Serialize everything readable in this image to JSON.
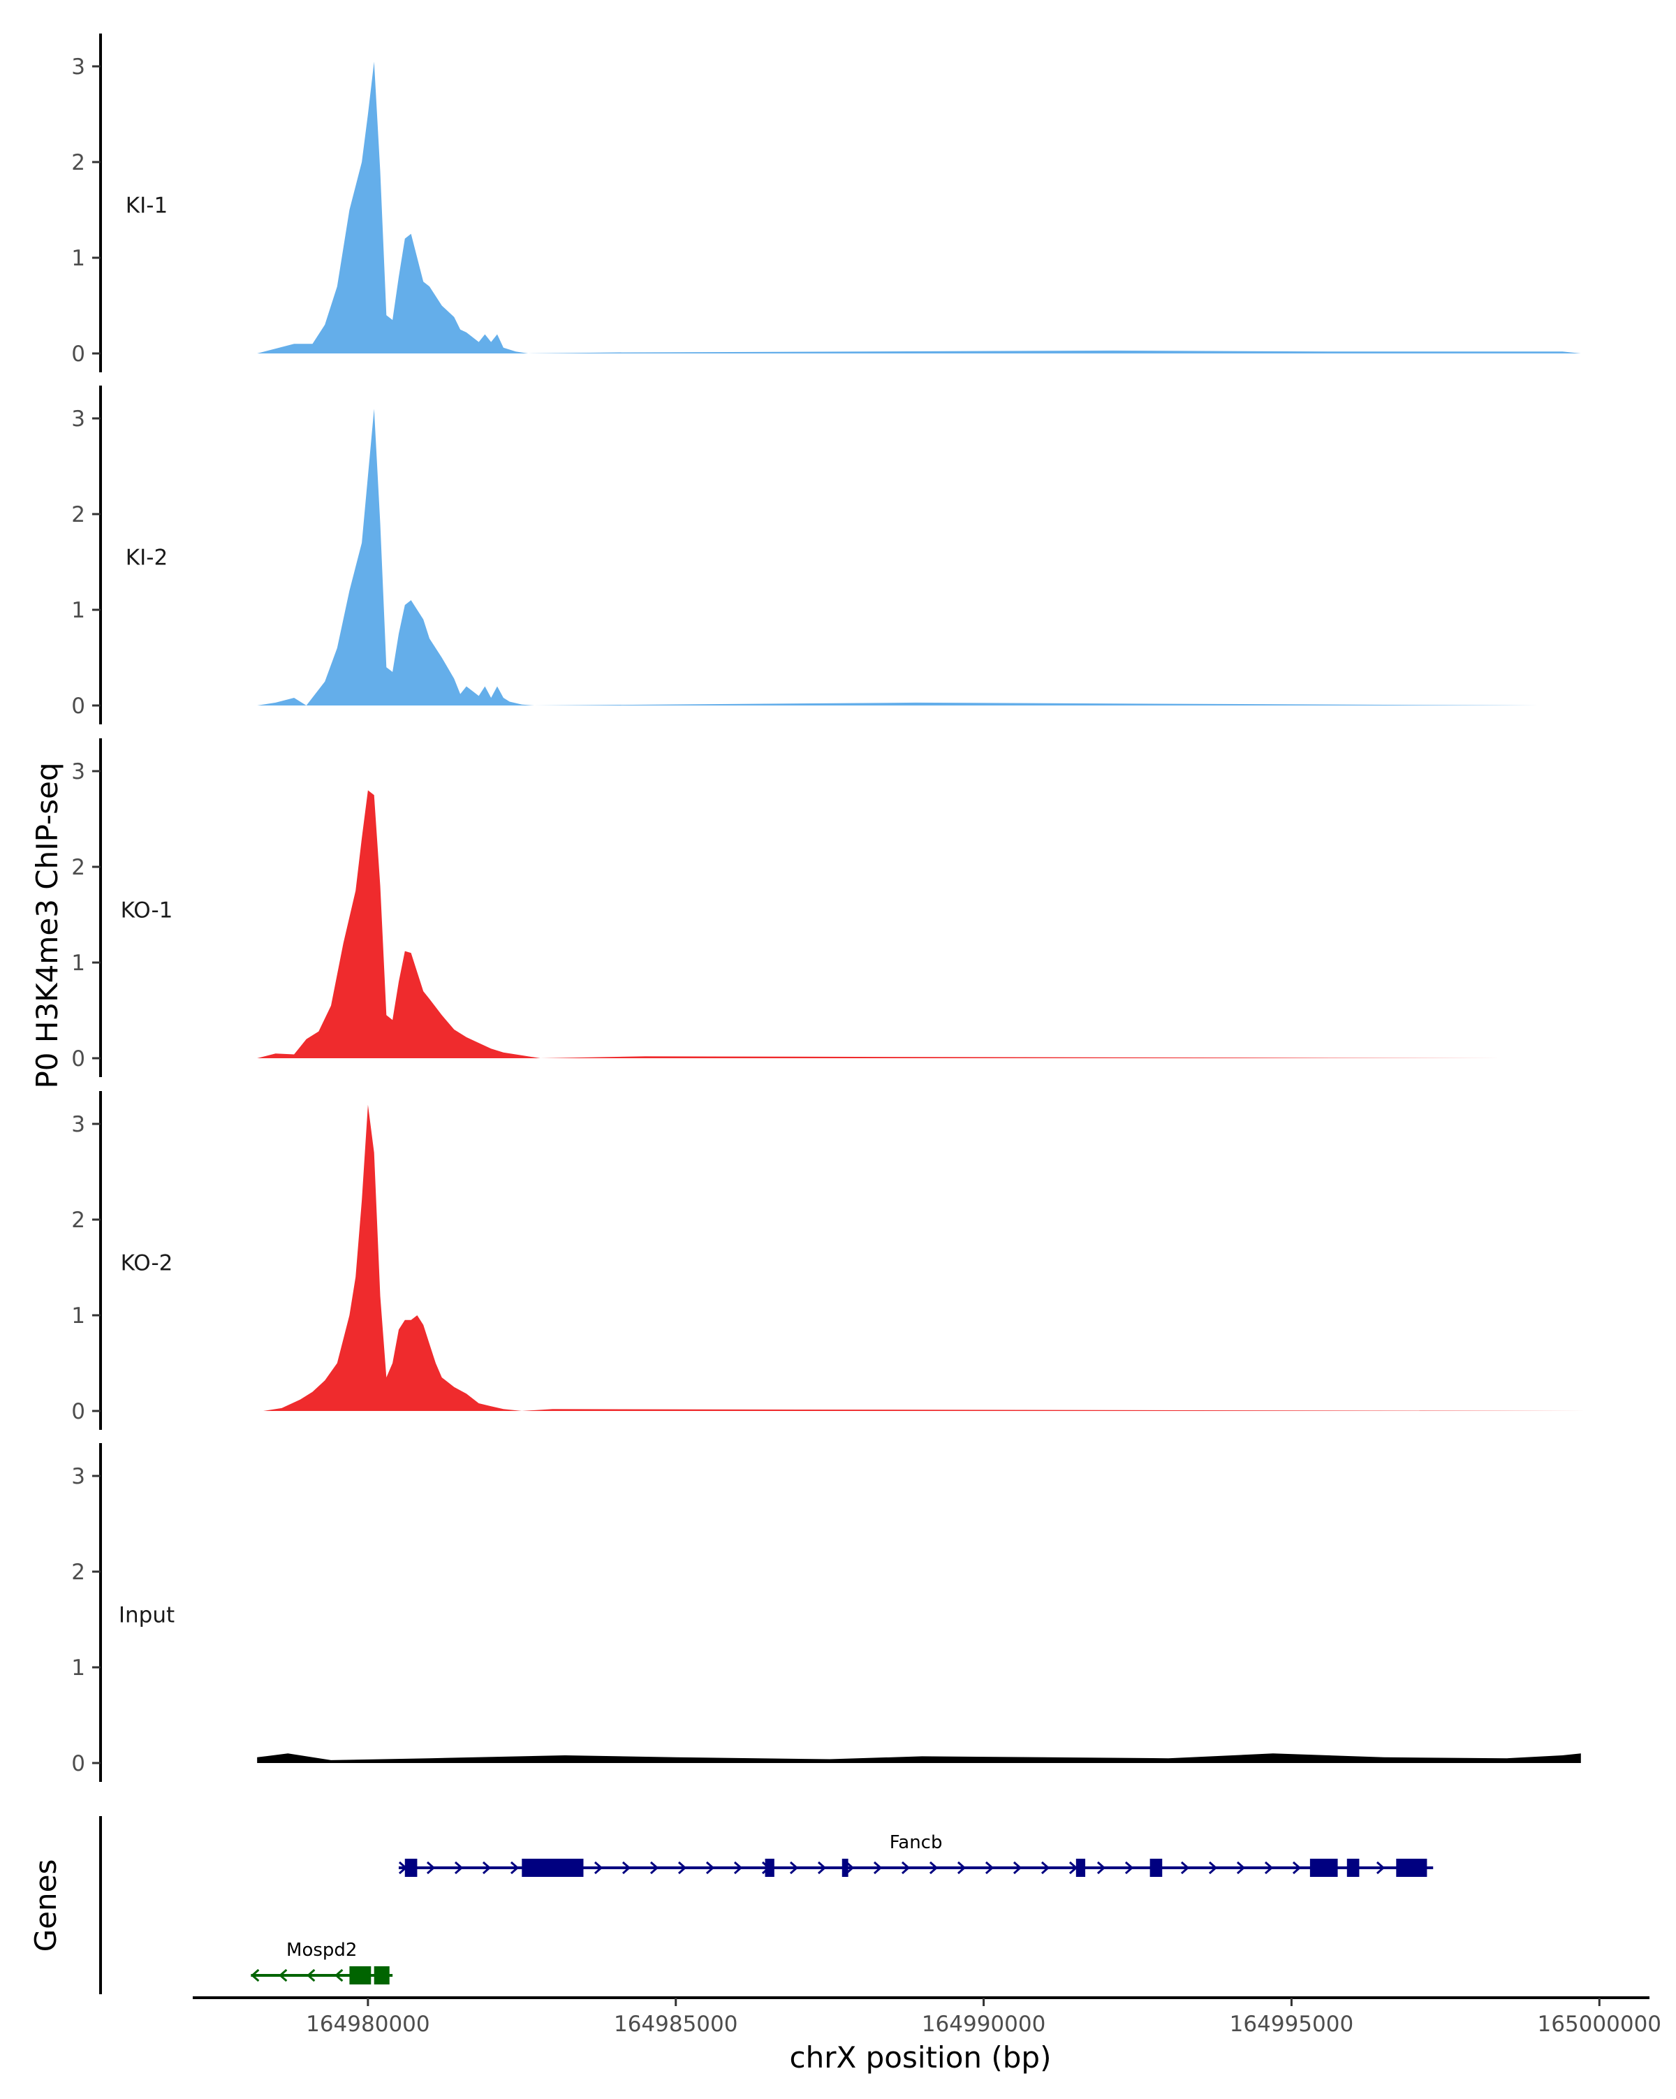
{
  "chart_data": {
    "type": "area",
    "ylabel": "P0 H3K4me3 ChIP-seq",
    "xlabel": "chrX position (bp)",
    "gene_track_label": "Genes",
    "xlim": [
      164977200,
      165000700
    ],
    "ylim": [
      0,
      3.3
    ],
    "yticks": [
      0,
      1,
      2,
      3
    ],
    "xticks": [
      164980000,
      164985000,
      164990000,
      164995000,
      165000000
    ],
    "xtick_labels": [
      "164980000",
      "164985000",
      "164990000",
      "164995000",
      "165000000"
    ],
    "tracks": [
      {
        "name": "KI-1",
        "color": "#64aeea",
        "x": [
          164978200,
          164978500,
          164978800,
          164979100,
          164979300,
          164979500,
          164979700,
          164979900,
          164980000,
          164980100,
          164980200,
          164980300,
          164980400,
          164980500,
          164980600,
          164980700,
          164980800,
          164980900,
          164981000,
          164981200,
          164981400,
          164981500,
          164981600,
          164981800,
          164981900,
          164982000,
          164982100,
          164982200,
          164982400,
          164982600,
          164984000,
          164992100,
          164995600,
          164999400,
          164999700
        ],
        "values": [
          0.0,
          0.05,
          0.1,
          0.1,
          0.3,
          0.7,
          1.5,
          2.0,
          2.5,
          3.05,
          1.9,
          0.4,
          0.35,
          0.8,
          1.2,
          1.25,
          1.0,
          0.75,
          0.7,
          0.5,
          0.38,
          0.25,
          0.22,
          0.12,
          0.2,
          0.12,
          0.2,
          0.06,
          0.02,
          0.0,
          0.01,
          0.03,
          0.02,
          0.02,
          0.0
        ]
      },
      {
        "name": "KI-2",
        "color": "#64aeea",
        "x": [
          164978200,
          164978500,
          164978800,
          164979000,
          164979300,
          164979500,
          164979700,
          164979900,
          164980000,
          164980100,
          164980200,
          164980300,
          164980400,
          164980500,
          164980600,
          164980700,
          164980800,
          164980900,
          164981000,
          164981200,
          164981400,
          164981500,
          164981600,
          164981800,
          164981900,
          164982000,
          164982100,
          164982200,
          164982300,
          164982500,
          164982700,
          164988900,
          164999000
        ],
        "values": [
          0.0,
          0.03,
          0.08,
          0.0,
          0.25,
          0.6,
          1.2,
          1.7,
          2.4,
          3.1,
          1.9,
          0.4,
          0.35,
          0.75,
          1.05,
          1.1,
          1.0,
          0.9,
          0.7,
          0.5,
          0.28,
          0.12,
          0.2,
          0.1,
          0.2,
          0.08,
          0.2,
          0.08,
          0.04,
          0.01,
          0.0,
          0.03,
          0.0
        ]
      },
      {
        "name": "KO-1",
        "color": "#ef2b2d",
        "x": [
          164978200,
          164978500,
          164978800,
          164979000,
          164979200,
          164979400,
          164979600,
          164979800,
          164979900,
          164980000,
          164980100,
          164980200,
          164980300,
          164980400,
          164980500,
          164980600,
          164980700,
          164980800,
          164980900,
          164981000,
          164981200,
          164981400,
          164981600,
          164981800,
          164982000,
          164982200,
          164982500,
          164982800,
          164984500,
          164998400
        ],
        "values": [
          0.0,
          0.05,
          0.04,
          0.2,
          0.28,
          0.55,
          1.2,
          1.75,
          2.3,
          2.8,
          2.75,
          1.8,
          0.45,
          0.4,
          0.8,
          1.12,
          1.1,
          0.9,
          0.7,
          0.62,
          0.45,
          0.3,
          0.22,
          0.16,
          0.1,
          0.06,
          0.03,
          0.0,
          0.02,
          0.0
        ]
      },
      {
        "name": "KO-2",
        "color": "#ef2b2d",
        "x": [
          164978300,
          164978600,
          164978900,
          164979100,
          164979300,
          164979500,
          164979700,
          164979800,
          164979900,
          164980000,
          164980100,
          164980200,
          164980300,
          164980400,
          164980500,
          164980600,
          164980700,
          164980800,
          164980900,
          164981000,
          164981100,
          164981200,
          164981400,
          164981600,
          164981800,
          164982000,
          164982200,
          164982500,
          164983000,
          164999800
        ],
        "values": [
          0.0,
          0.03,
          0.12,
          0.2,
          0.32,
          0.5,
          1.0,
          1.4,
          2.2,
          3.2,
          2.7,
          1.2,
          0.35,
          0.5,
          0.85,
          0.95,
          0.95,
          1.0,
          0.9,
          0.7,
          0.5,
          0.35,
          0.25,
          0.18,
          0.08,
          0.05,
          0.02,
          0.0,
          0.02,
          0.0
        ]
      },
      {
        "name": "Input",
        "color": "#000000",
        "x": [
          164978200,
          164978700,
          164979400,
          164981000,
          164983200,
          164985000,
          164987500,
          164989000,
          164991000,
          164993000,
          164994700,
          164996500,
          164998500,
          164999400,
          164999700
        ],
        "values": [
          0.06,
          0.1,
          0.03,
          0.05,
          0.08,
          0.06,
          0.04,
          0.07,
          0.06,
          0.05,
          0.1,
          0.06,
          0.05,
          0.08,
          0.1
        ]
      }
    ],
    "genes": [
      {
        "name": "Fancb",
        "strand": "+",
        "color": "#000080",
        "start": 164980500,
        "end": 164997300,
        "exons": [
          [
            164980600,
            164980800
          ],
          [
            164982500,
            164983500
          ],
          [
            164986450,
            164986600
          ],
          [
            164987700,
            164987800
          ],
          [
            164991500,
            164991650
          ],
          [
            164992700,
            164992900
          ],
          [
            164995300,
            164995750
          ],
          [
            164995900,
            164996100
          ],
          [
            164996700,
            164997200
          ]
        ]
      },
      {
        "name": "Mospd2",
        "strand": "-",
        "color": "#006400",
        "start": 164978100,
        "end": 164980400,
        "exons": [
          [
            164979700,
            164980050
          ],
          [
            164980100,
            164980350
          ]
        ]
      }
    ]
  }
}
